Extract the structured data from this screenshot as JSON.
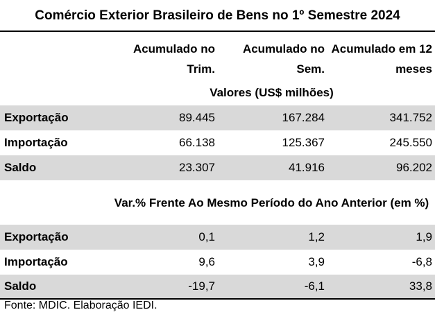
{
  "title": "Comércio Exterior Brasileiro de Bens no 1º Semestre 2024",
  "columns": [
    "Acumulado no Trim.",
    "Acumulado no Sem.",
    "Acumulado em 12 meses"
  ],
  "section1": "Valores  (US$ milhões)",
  "values": [
    {
      "label": "Exportação",
      "c1": "89.445",
      "c2": "167.284",
      "c3": "341.752"
    },
    {
      "label": "Importação",
      "c1": "66.138",
      "c2": "125.367",
      "c3": "245.550"
    },
    {
      "label": "Saldo",
      "c1": "23.307",
      "c2": "41.916",
      "c3": "96.202"
    }
  ],
  "section2": "Var.% Frente Ao Mesmo Período do Ano Anterior (em %)",
  "variation": [
    {
      "label": "Exportação",
      "c1": "0,1",
      "c2": "1,2",
      "c3": "1,9"
    },
    {
      "label": "Importação",
      "c1": "9,6",
      "c2": "3,9",
      "c3": "-6,8"
    },
    {
      "label": "Saldo",
      "c1": "-19,7",
      "c2": "-6,1",
      "c3": "33,8"
    }
  ],
  "footer": "Fonte: MDIC. Elaboração IEDI."
}
